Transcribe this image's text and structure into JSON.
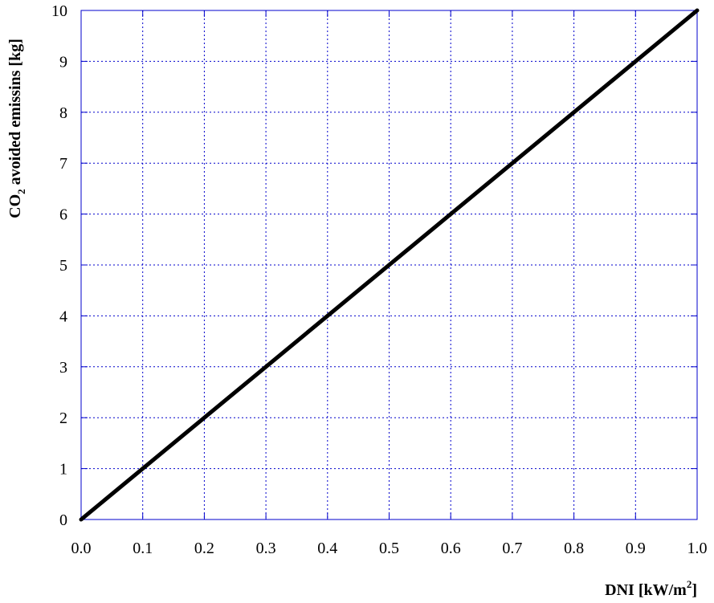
{
  "chart_data": {
    "type": "line",
    "xlabel": {
      "main": "DNI [kW/m",
      "sup": "2",
      "end": "]"
    },
    "ylabel": {
      "before": "CO",
      "sub": "2",
      "after": " avoided emissins [kg]"
    },
    "xlim": [
      0.0,
      1.0
    ],
    "ylim": [
      0,
      10
    ],
    "xticks": [
      "0.0",
      "0.1",
      "0.2",
      "0.3",
      "0.4",
      "0.5",
      "0.6",
      "0.7",
      "0.8",
      "0.9",
      "1.0"
    ],
    "yticks": [
      "0",
      "1",
      "2",
      "3",
      "4",
      "5",
      "6",
      "7",
      "8",
      "9",
      "10"
    ],
    "grid": true,
    "series": [
      {
        "x": [
          0.0,
          1.0
        ],
        "y": [
          0,
          10
        ],
        "color": "#000000"
      }
    ]
  },
  "colors": {
    "grid": "#0000cc",
    "frame": "#0000cc",
    "line": "#000000"
  }
}
